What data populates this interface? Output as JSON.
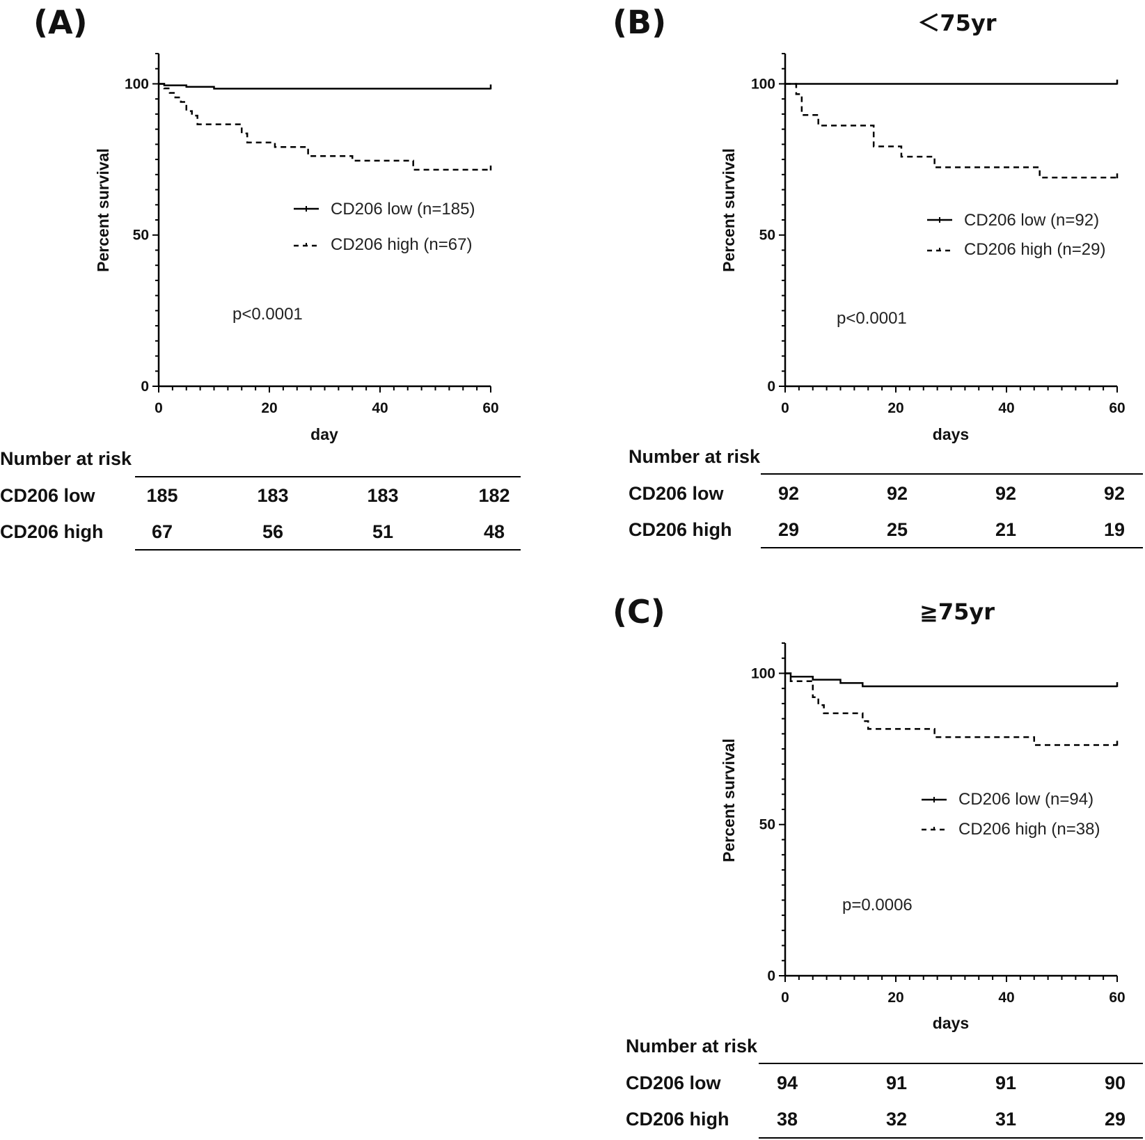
{
  "chart_data": [
    {
      "type": "line",
      "panel_label": "(A)",
      "title": "",
      "xlabel": "day",
      "ylabel": "Percent survival",
      "xlim": [
        0,
        60
      ],
      "ylim": [
        0,
        110
      ],
      "xticks": [
        0,
        20,
        40,
        60
      ],
      "yticks": [
        0,
        50,
        100
      ],
      "p_value": "p<0.0001",
      "series": [
        {
          "name": "CD206 low (n=185)",
          "style": "solid",
          "x": [
            0,
            1,
            5,
            10,
            60
          ],
          "y": [
            100,
            99.5,
            99,
            98.4,
            98.4
          ]
        },
        {
          "name": "CD206 high (n=67)",
          "style": "dashed",
          "x": [
            0,
            1,
            2,
            3,
            4,
            5,
            6,
            7,
            14,
            15,
            16,
            21,
            27,
            35,
            46,
            60
          ],
          "y": [
            100,
            98.5,
            97,
            95.5,
            94,
            91,
            89.5,
            86.6,
            86.6,
            83.6,
            80.6,
            79.1,
            76.1,
            74.6,
            71.6,
            71.6
          ]
        }
      ],
      "risk_table": {
        "title": "Number at risk",
        "rows": [
          {
            "label": "CD206 low",
            "values": [
              "185",
              "183",
              "183",
              "182"
            ]
          },
          {
            "label": "CD206 high",
            "values": [
              "67",
              "56",
              "51",
              "48"
            ]
          }
        ]
      }
    },
    {
      "type": "line",
      "panel_label": "(B)",
      "title": "＜75yr",
      "xlabel": "days",
      "ylabel": "Percent survival",
      "xlim": [
        0,
        60
      ],
      "ylim": [
        0,
        110
      ],
      "xticks": [
        0,
        20,
        40,
        60
      ],
      "yticks": [
        0,
        50,
        100
      ],
      "p_value": "p<0.0001",
      "series": [
        {
          "name": "CD206 low (n=92)",
          "style": "solid",
          "x": [
            0,
            60
          ],
          "y": [
            100,
            100
          ]
        },
        {
          "name": "CD206 high (n=29)",
          "style": "dashed",
          "x": [
            0,
            2,
            3,
            6,
            16,
            21,
            27,
            46,
            60
          ],
          "y": [
            100,
            96.6,
            89.7,
            86.2,
            79.3,
            75.9,
            72.4,
            69,
            69
          ]
        }
      ],
      "risk_table": {
        "title": "Number at risk",
        "rows": [
          {
            "label": "CD206 low",
            "values": [
              "92",
              "92",
              "92",
              "92"
            ]
          },
          {
            "label": "CD206 high",
            "values": [
              "29",
              "25",
              "21",
              "19"
            ]
          }
        ]
      }
    },
    {
      "type": "line",
      "panel_label": "(C)",
      "title": "≧75yr",
      "xlabel": "days",
      "ylabel": "Percent survival",
      "xlim": [
        0,
        60
      ],
      "ylim": [
        0,
        110
      ],
      "xticks": [
        0,
        20,
        40,
        60
      ],
      "yticks": [
        0,
        50,
        100
      ],
      "p_value": "p=0.0006",
      "series": [
        {
          "name": "CD206 low (n=94)",
          "style": "solid",
          "x": [
            0,
            1,
            5,
            10,
            14,
            60
          ],
          "y": [
            100,
            98.9,
            97.9,
            96.8,
            95.7,
            95.7
          ]
        },
        {
          "name": "CD206 high (n=38)",
          "style": "dashed",
          "x": [
            0,
            1,
            5,
            6,
            7,
            14,
            15,
            16,
            27,
            45,
            60
          ],
          "y": [
            100,
            97.4,
            92.1,
            89.5,
            86.8,
            84.2,
            81.6,
            81.6,
            78.9,
            76.3,
            76.3
          ]
        }
      ],
      "risk_table": {
        "title": "Number at risk",
        "rows": [
          {
            "label": "CD206 low",
            "values": [
              "94",
              "91",
              "91",
              "90"
            ]
          },
          {
            "label": "CD206 high",
            "values": [
              "38",
              "32",
              "31",
              "29"
            ]
          }
        ]
      }
    }
  ]
}
